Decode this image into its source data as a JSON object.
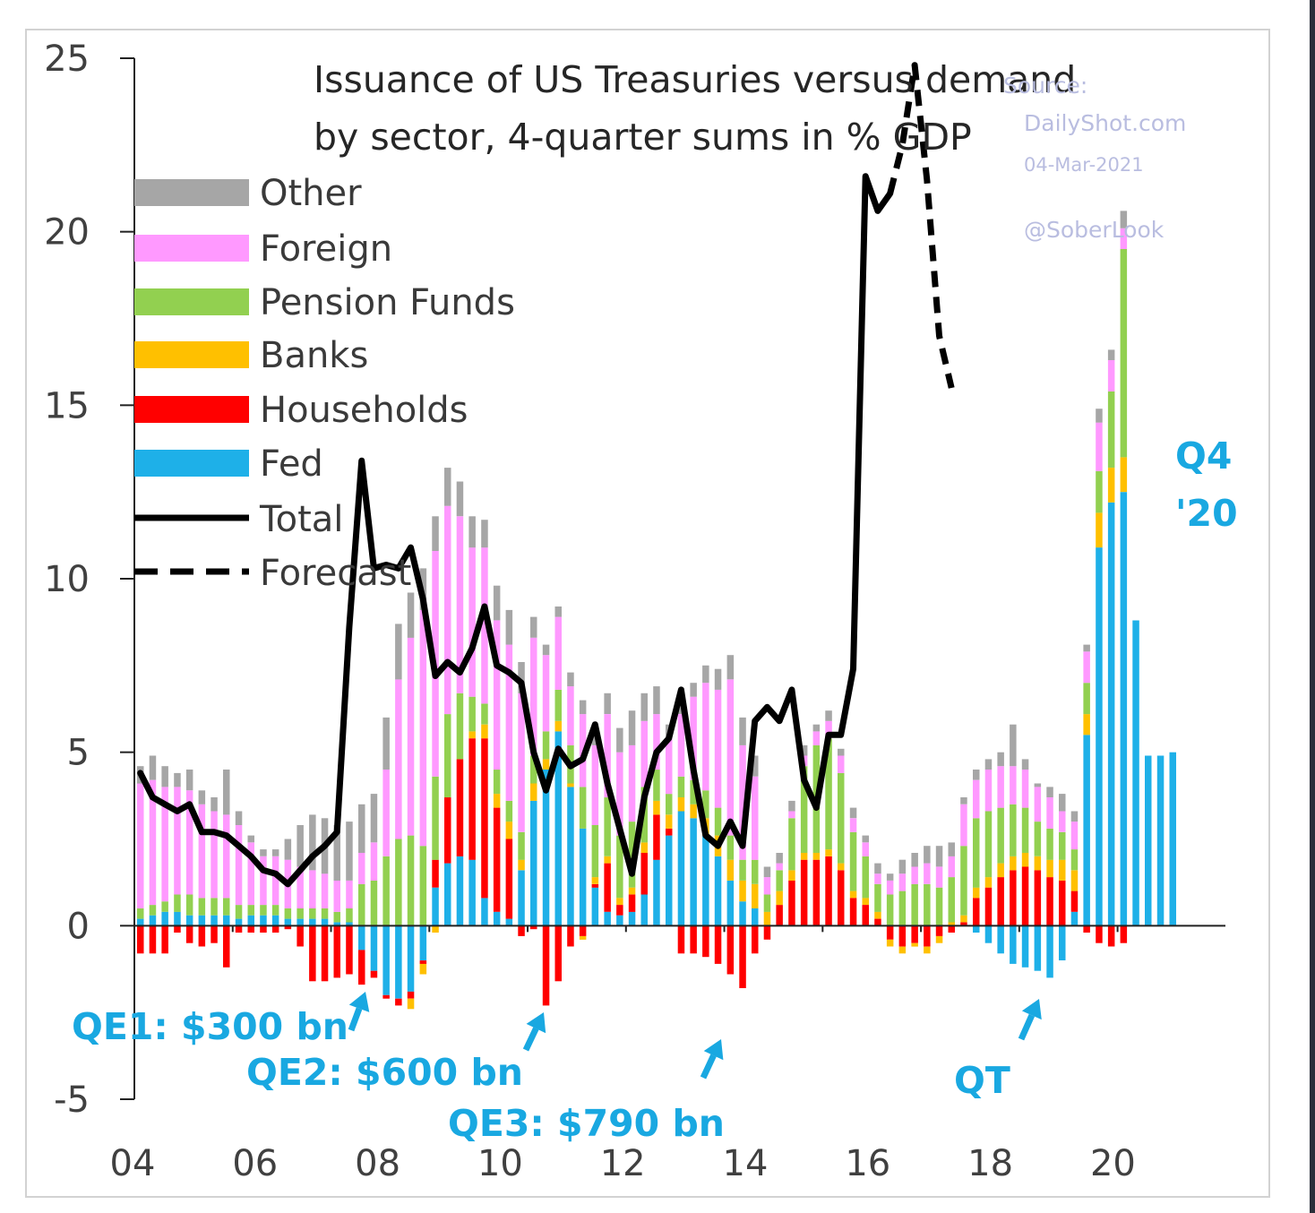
{
  "chart_data": {
    "type": "bar",
    "stacked": true,
    "title": [
      "Issuance of US Treasuries versus demand",
      "by sector, 4-quarter sums in % GDP"
    ],
    "xlabel": "",
    "ylabel": "",
    "ylim": [
      -5,
      25
    ],
    "y_ticks": [
      "25",
      "20",
      "15",
      "10",
      "5",
      "0",
      "-5"
    ],
    "x_ticks": [
      "04",
      "06",
      "08",
      "10",
      "12",
      "14",
      "16",
      "18",
      "20"
    ],
    "legend": [
      "Other",
      "Foreign",
      "Pension Funds",
      "Banks",
      "Households",
      "Fed",
      "Total",
      "Forecast"
    ],
    "colors": {
      "Other": "#a6a6a6",
      "Foreign": "#ff99ff",
      "Pension Funds": "#92d050",
      "Banks": "#ffc000",
      "Households": "#ff0000",
      "Fed": "#1eb0e8",
      "Total": "#000000",
      "Forecast": "#000000"
    },
    "series": [
      {
        "name": "Fed",
        "values": [
          0.2,
          0.3,
          0.4,
          0.4,
          0.3,
          0.3,
          0.3,
          0.3,
          0.2,
          0.3,
          0.3,
          0.3,
          0.2,
          0.2,
          0.2,
          0.2,
          0.1,
          0.1,
          -0.7,
          -1.3,
          -2.0,
          -2.1,
          -1.9,
          -1.0,
          1.1,
          1.8,
          2.0,
          1.9,
          0.8,
          0.4,
          0.2,
          1.6,
          3.6,
          4.5,
          5.6,
          4.0,
          2.8,
          1.1,
          0.4,
          0.3,
          0.4,
          0.9,
          1.9,
          2.6,
          3.3,
          3.1,
          2.6,
          2.0,
          1.3,
          0.7,
          0.5,
          0,
          0,
          0,
          0,
          0,
          0,
          0,
          0,
          0,
          0,
          0,
          0,
          0,
          0,
          0,
          0,
          0,
          -0.2,
          -0.5,
          -0.8,
          -1.1,
          -1.2,
          -1.3,
          -1.5,
          -1.0,
          0.4,
          5.5,
          10.9,
          12.2,
          12.5,
          8.8,
          4.9,
          4.9,
          5.0
        ]
      },
      {
        "name": "Households",
        "values": [
          -0.8,
          -0.8,
          -0.8,
          -0.2,
          -0.5,
          -0.6,
          -0.5,
          -1.2,
          -0.2,
          -0.2,
          -0.2,
          -0.2,
          -0.1,
          -0.6,
          -1.6,
          -1.6,
          -1.5,
          -1.4,
          -1.0,
          -0.2,
          -0.1,
          -0.2,
          -0.2,
          -0.1,
          0.8,
          1.9,
          2.8,
          3.5,
          4.6,
          3.0,
          2.3,
          -0.3,
          -0.1,
          -2.3,
          -1.6,
          -0.6,
          -0.3,
          0.1,
          1.4,
          0.3,
          0.5,
          1.2,
          1.3,
          0.2,
          -0.8,
          -0.8,
          -0.9,
          -1.1,
          -1.4,
          -1.8,
          -0.8,
          -0.4,
          0.6,
          1.3,
          1.9,
          1.9,
          2.0,
          1.6,
          0.8,
          0.6,
          0.2,
          -0.4,
          -0.6,
          -0.5,
          -0.6,
          -0.3,
          -0.2,
          0.1,
          0.8,
          1.1,
          1.4,
          1.6,
          1.7,
          1.6,
          1.4,
          1.3,
          0.6,
          -0.2,
          -0.5,
          -0.6,
          -0.5,
          0,
          0,
          0,
          0
        ]
      },
      {
        "name": "Banks",
        "values": [
          0,
          0,
          0,
          0,
          0,
          0,
          0,
          0,
          0,
          0,
          0,
          0,
          0,
          0,
          0,
          0,
          0,
          0,
          0,
          0,
          0,
          0,
          -0.3,
          -0.3,
          -0.2,
          0,
          0,
          0.2,
          0.4,
          0.4,
          0.5,
          0.3,
          0.5,
          0.3,
          0.3,
          0.1,
          -0.1,
          0.2,
          0.2,
          0.2,
          0.2,
          0.3,
          0.4,
          0.4,
          0.4,
          0.4,
          0.5,
          0.6,
          0.6,
          0.6,
          0.7,
          0.4,
          0.4,
          0.3,
          0.2,
          0.2,
          0.2,
          0.2,
          0.2,
          0.2,
          0.2,
          -0.2,
          -0.2,
          -0.1,
          -0.2,
          -0.2,
          0.1,
          0.2,
          0.3,
          0.3,
          0.4,
          0.4,
          0.4,
          0.4,
          0.5,
          0.6,
          0.6,
          0.6,
          1.0,
          1.0,
          1.0,
          0,
          0,
          0,
          0
        ]
      },
      {
        "name": "Pension Funds",
        "values": [
          0.3,
          0.3,
          0.3,
          0.5,
          0.6,
          0.5,
          0.5,
          0.5,
          0.4,
          0.3,
          0.3,
          0.3,
          0.3,
          0.3,
          0.3,
          0.3,
          0.3,
          0.4,
          1.2,
          1.3,
          2.0,
          2.5,
          2.6,
          2.3,
          2.4,
          2.4,
          1.9,
          1.0,
          0.6,
          0.7,
          0.6,
          0.8,
          0.8,
          0.8,
          0.9,
          1.1,
          1.2,
          1.5,
          1.7,
          1.8,
          1.9,
          1.6,
          0.9,
          0.6,
          0.6,
          0.7,
          0.8,
          0.8,
          0.7,
          0.6,
          0.7,
          0.5,
          0.6,
          1.5,
          2.5,
          3.1,
          3.2,
          2.6,
          1.7,
          1.2,
          0.8,
          0.9,
          1.0,
          1.2,
          1.2,
          1.1,
          1.3,
          2.0,
          2.0,
          1.9,
          1.6,
          1.5,
          1.3,
          1.0,
          0.9,
          0.8,
          0.6,
          0.9,
          1.2,
          2.2,
          6.0,
          0,
          0,
          0,
          0
        ]
      },
      {
        "name": "Foreign",
        "values": [
          3.6,
          3.6,
          3.3,
          3.1,
          3.0,
          2.7,
          2.5,
          2.4,
          2.3,
          1.8,
          1.4,
          1.4,
          1.4,
          1.2,
          1.1,
          1.0,
          0.9,
          0.8,
          0.9,
          1.1,
          2.5,
          4.6,
          5.7,
          6.8,
          6.5,
          6.0,
          5.1,
          4.3,
          4.5,
          4.3,
          4.5,
          4.0,
          3.4,
          2.2,
          2.1,
          1.7,
          2.1,
          2.3,
          2.4,
          2.4,
          2.2,
          1.9,
          1.6,
          1.6,
          1.8,
          2.4,
          3.1,
          3.4,
          4.5,
          3.3,
          2.4,
          0.5,
          0.2,
          0.2,
          0.3,
          0.4,
          0.5,
          0.5,
          0.4,
          0.4,
          0.3,
          0.4,
          0.5,
          0.5,
          0.6,
          0.6,
          0.6,
          1.2,
          1.1,
          1.2,
          1.2,
          1.1,
          1.1,
          1.0,
          0.9,
          0.6,
          0.8,
          0.9,
          1.4,
          0.9,
          0.6,
          0,
          0,
          0,
          0
        ]
      },
      {
        "name": "Other",
        "values": [
          0.5,
          0.7,
          0.6,
          0.4,
          0.6,
          0.4,
          0.4,
          1.3,
          0.4,
          0.2,
          0.2,
          0.2,
          0.6,
          1.2,
          1.6,
          1.6,
          1.6,
          1.7,
          1.4,
          1.4,
          1.5,
          1.6,
          1.3,
          1.2,
          1.0,
          1.1,
          1.0,
          0.9,
          0.8,
          1.0,
          1.0,
          0.9,
          0.6,
          0.3,
          0.3,
          0.4,
          0.4,
          0.4,
          0.6,
          0.7,
          1.0,
          0.8,
          0.8,
          0.4,
          0.3,
          0.4,
          0.5,
          0.6,
          0.7,
          0.8,
          0.6,
          0.3,
          0.3,
          0.3,
          0.3,
          0.2,
          0.3,
          0.2,
          0.3,
          0.2,
          0.3,
          0.2,
          0.4,
          0.4,
          0.5,
          0.6,
          0.4,
          0.2,
          0.3,
          0.3,
          0.4,
          1.2,
          0.3,
          0.1,
          0.3,
          0.5,
          0.3,
          0.2,
          0.4,
          0.3,
          0.5,
          0,
          0,
          0,
          0
        ]
      }
    ],
    "total": [
      4.4,
      3.7,
      3.5,
      3.3,
      3.5,
      2.7,
      2.7,
      2.6,
      2.3,
      2.0,
      1.6,
      1.5,
      1.2,
      1.6,
      2.0,
      2.3,
      2.7,
      8.6,
      13.4,
      10.3,
      10.4,
      10.3,
      10.9,
      9.4,
      7.2,
      7.6,
      7.3,
      8.0,
      9.2,
      7.5,
      7.3,
      7.0,
      5.0,
      3.9,
      5.1,
      4.6,
      4.8,
      5.8,
      4.1,
      2.8,
      1.5,
      3.7,
      5.0,
      5.4,
      6.8,
      4.5,
      2.6,
      2.3,
      3.0,
      2.3,
      5.9,
      6.3,
      5.9,
      6.8,
      4.2,
      3.4,
      5.5,
      5.5,
      7.4,
      21.6,
      20.6,
      21.1
    ],
    "forecast": [
      21.1,
      22.5,
      24.8,
      21.5,
      17.0,
      15.5
    ],
    "annotations": {
      "qe1": "QE1: $300 bn",
      "qe2": "QE2: $600 bn",
      "qe3": "QE3: $790 bn",
      "qt": "QT",
      "q4_line1": "Q4",
      "q4_line2": "'20"
    },
    "watermark": {
      "source": "Source:",
      "site": "DailyShot.com",
      "date": "04-Mar-2021",
      "handle": "@SoberLook"
    }
  }
}
